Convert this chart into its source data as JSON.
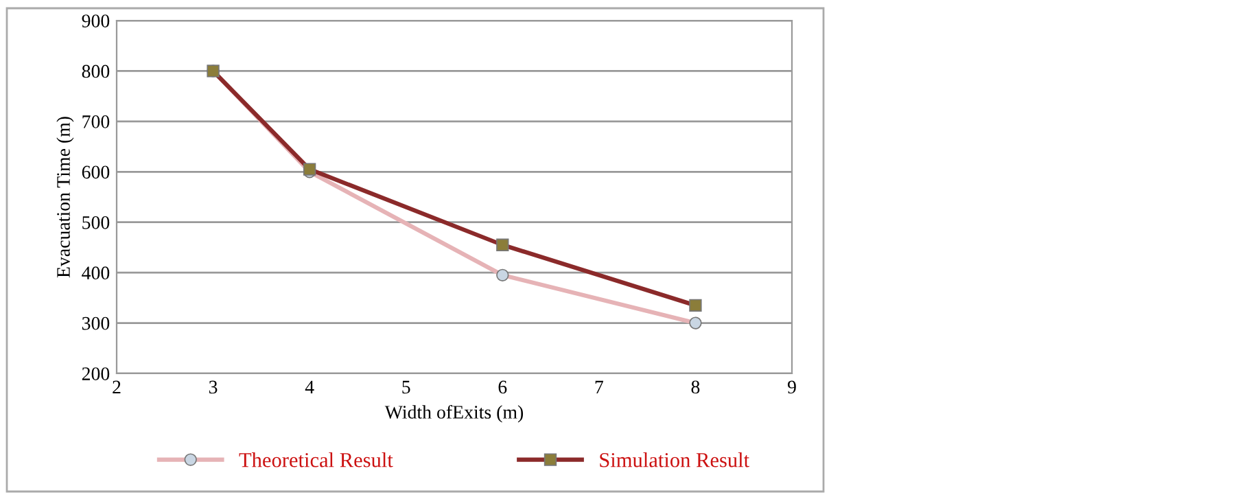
{
  "chart_data": {
    "type": "line",
    "xlabel": "Width ofExits (m)",
    "ylabel": "Evacuation Time (m)",
    "x": [
      3,
      4,
      6,
      8
    ],
    "series": [
      {
        "name": "Theoretical Result",
        "color": "#e6b3b6",
        "marker": "circle",
        "values": [
          800,
          600,
          395,
          300
        ]
      },
      {
        "name": "Simulation Result",
        "color": "#8b2a2a",
        "marker": "square",
        "values": [
          800,
          605,
          455,
          335
        ]
      }
    ],
    "xlim": [
      2,
      9
    ],
    "xticks": [
      2,
      3,
      4,
      5,
      6,
      7,
      8,
      9
    ],
    "ylim": [
      200,
      900
    ],
    "yticks": [
      200,
      300,
      400,
      500,
      600,
      700,
      800,
      900
    ],
    "grid": "y",
    "legend": "bottom"
  }
}
